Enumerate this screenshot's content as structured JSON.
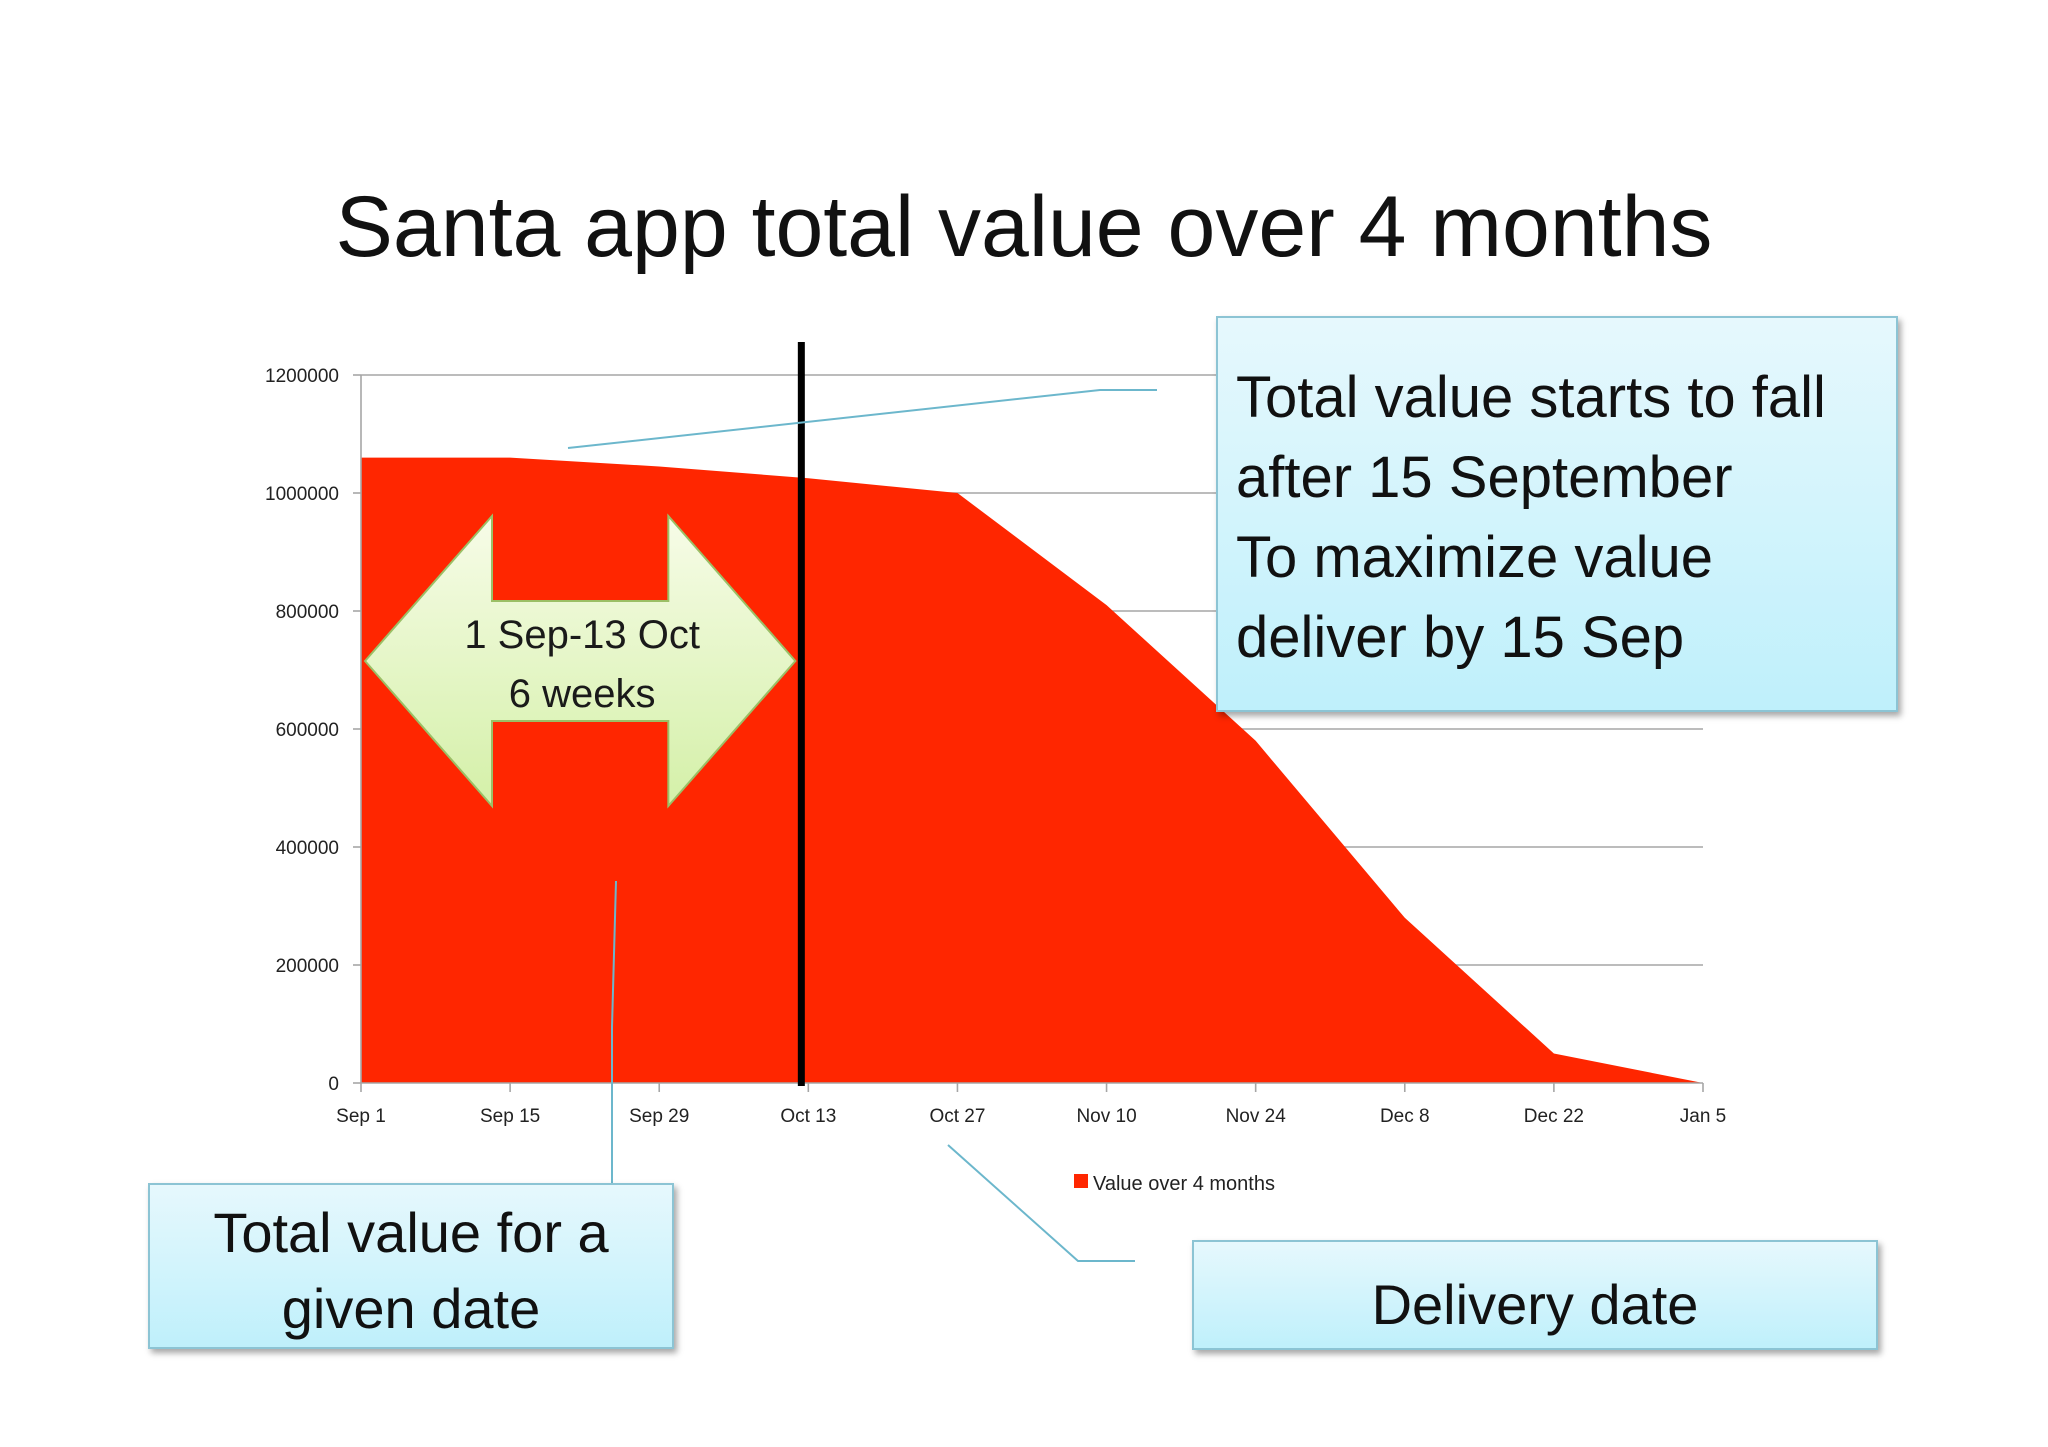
{
  "title": "Santa app total value over 4 months",
  "chart_data": {
    "type": "area",
    "x": [
      "Sep 1",
      "Sep 15",
      "Sep 29",
      "Oct 13",
      "Oct 27",
      "Nov 10",
      "Nov 24",
      "Dec 8",
      "Dec 22",
      "Jan 5"
    ],
    "series": [
      {
        "name": "Value over 4 months",
        "values": [
          1060000,
          1060000,
          1045000,
          1025000,
          1000000,
          810000,
          580000,
          280000,
          50000,
          0
        ],
        "color": "#ff2600"
      }
    ],
    "yticks": [
      0,
      200000,
      400000,
      600000,
      800000,
      1000000,
      1200000
    ],
    "ylim": [
      0,
      1200000
    ],
    "grid": true,
    "legend": "bottom-center",
    "marker": {
      "position": "Oct 13",
      "color": "#000000"
    }
  },
  "arrow": {
    "line1": "1 Sep-13 Oct",
    "line2": "6 weeks",
    "from": "Sep 1",
    "to": "Oct 13"
  },
  "callouts": {
    "fall": {
      "lines": [
        "Total value starts to fall",
        "after 15 September",
        "To maximize value",
        "deliver by 15 Sep"
      ]
    },
    "total": {
      "lines": [
        "Total value for a",
        "given date"
      ]
    },
    "delivery": {
      "text": "Delivery date"
    }
  }
}
